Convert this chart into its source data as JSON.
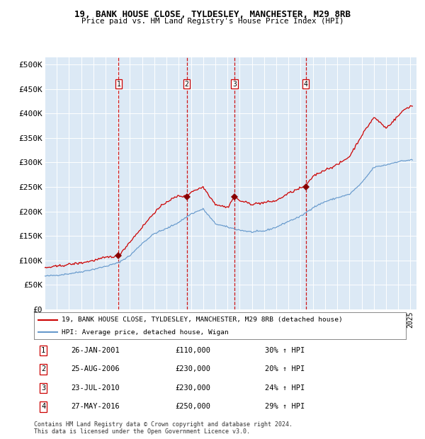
{
  "title1": "19, BANK HOUSE CLOSE, TYLDESLEY, MANCHESTER, M29 8RB",
  "title2": "Price paid vs. HM Land Registry's House Price Index (HPI)",
  "bg_color": "#dce9f5",
  "grid_color": "#ffffff",
  "red_line_color": "#cc0000",
  "blue_line_color": "#6699cc",
  "sale_marker_color": "#880000",
  "vline_color": "#cc0000",
  "yticks": [
    0,
    50000,
    100000,
    150000,
    200000,
    250000,
    300000,
    350000,
    400000,
    450000,
    500000
  ],
  "ylim": [
    0,
    515000
  ],
  "xlim_start": 1995.0,
  "xlim_end": 2025.5,
  "sales": [
    {
      "label": "1",
      "date_num": 2001.07,
      "price": 110000,
      "pct": "30%",
      "date_str": "26-JAN-2001"
    },
    {
      "label": "2",
      "date_num": 2006.65,
      "price": 230000,
      "pct": "20%",
      "date_str": "25-AUG-2006"
    },
    {
      "label": "3",
      "date_num": 2010.56,
      "price": 230000,
      "pct": "24%",
      "date_str": "23-JUL-2010"
    },
    {
      "label": "4",
      "date_num": 2016.41,
      "price": 250000,
      "pct": "29%",
      "date_str": "27-MAY-2016"
    }
  ],
  "legend_line1": "19, BANK HOUSE CLOSE, TYLDESLEY, MANCHESTER, M29 8RB (detached house)",
  "legend_line2": "HPI: Average price, detached house, Wigan",
  "footer1": "Contains HM Land Registry data © Crown copyright and database right 2024.",
  "footer2": "This data is licensed under the Open Government Licence v3.0."
}
